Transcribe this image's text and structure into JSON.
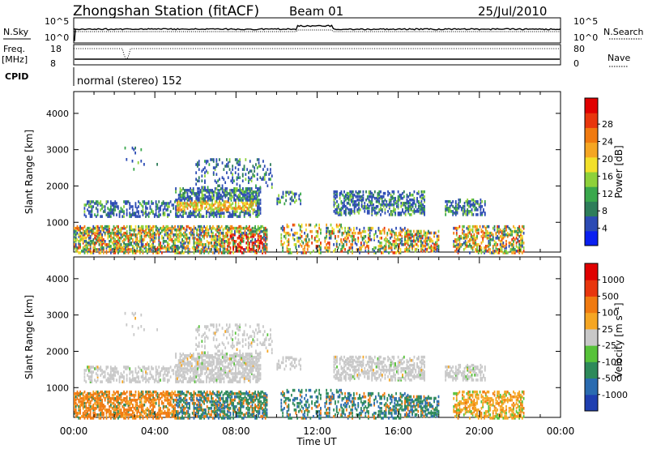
{
  "header": {
    "station": "Zhongshan Station (fitACF)",
    "beam": "Beam 01",
    "date": "25/Jul/2010"
  },
  "strip": {
    "nsky_label": "N.Sky",
    "nsky_ticks": [
      "10^5",
      "10^0"
    ],
    "nsearch_label": "N.Search",
    "nsearch_ticks": [
      "10^5",
      "10^0"
    ],
    "freq_label": "Freq.",
    "freq_unit": "[MHz]",
    "freq_ticks": [
      "18",
      "8"
    ],
    "nave_label": "Nave",
    "nave_ticks": [
      "80",
      "0"
    ],
    "cpid_label": "CPID",
    "cpid_text": "normal (stereo) 152"
  },
  "chart_data": [
    {
      "type": "heatmap",
      "title": "",
      "ylabel": "Slant Range [km]",
      "ylim": [
        180,
        4600
      ],
      "yticks": [
        "1000",
        "2000",
        "3000",
        "4000"
      ],
      "colorbar_label": "Power [dB]",
      "colorbar_ticks": [
        "4",
        "8",
        "12",
        "16",
        "20",
        "24",
        "28"
      ],
      "colorbar_colors": [
        "#0a1ff0",
        "#2c4bb4",
        "#2e7d5a",
        "#3aa84c",
        "#8ed13a",
        "#f2e02a",
        "#f5a623",
        "#f07a10",
        "#e8360d",
        "#e00000"
      ]
    },
    {
      "type": "heatmap",
      "title": "",
      "xlabel": "Time UT",
      "ylabel": "Slant Range [km]",
      "ylim": [
        180,
        4600
      ],
      "yticks": [
        "1000",
        "2000",
        "3000",
        "4000"
      ],
      "xticks": [
        "00:00",
        "04:00",
        "08:00",
        "12:00",
        "16:00",
        "20:00",
        "00:00"
      ],
      "colorbar_label": "Velocity [m s⁻¹]",
      "colorbar_ticks": [
        "1000",
        "500",
        "100",
        "25",
        "-25",
        "-100",
        "-500",
        "-1000"
      ],
      "colorbar_colors": [
        "#1f3fb0",
        "#2a6bb0",
        "#2e8a5a",
        "#57c23a",
        "#c8c8c8",
        "#f5a623",
        "#f07a10",
        "#e8360d",
        "#e00000"
      ]
    }
  ]
}
